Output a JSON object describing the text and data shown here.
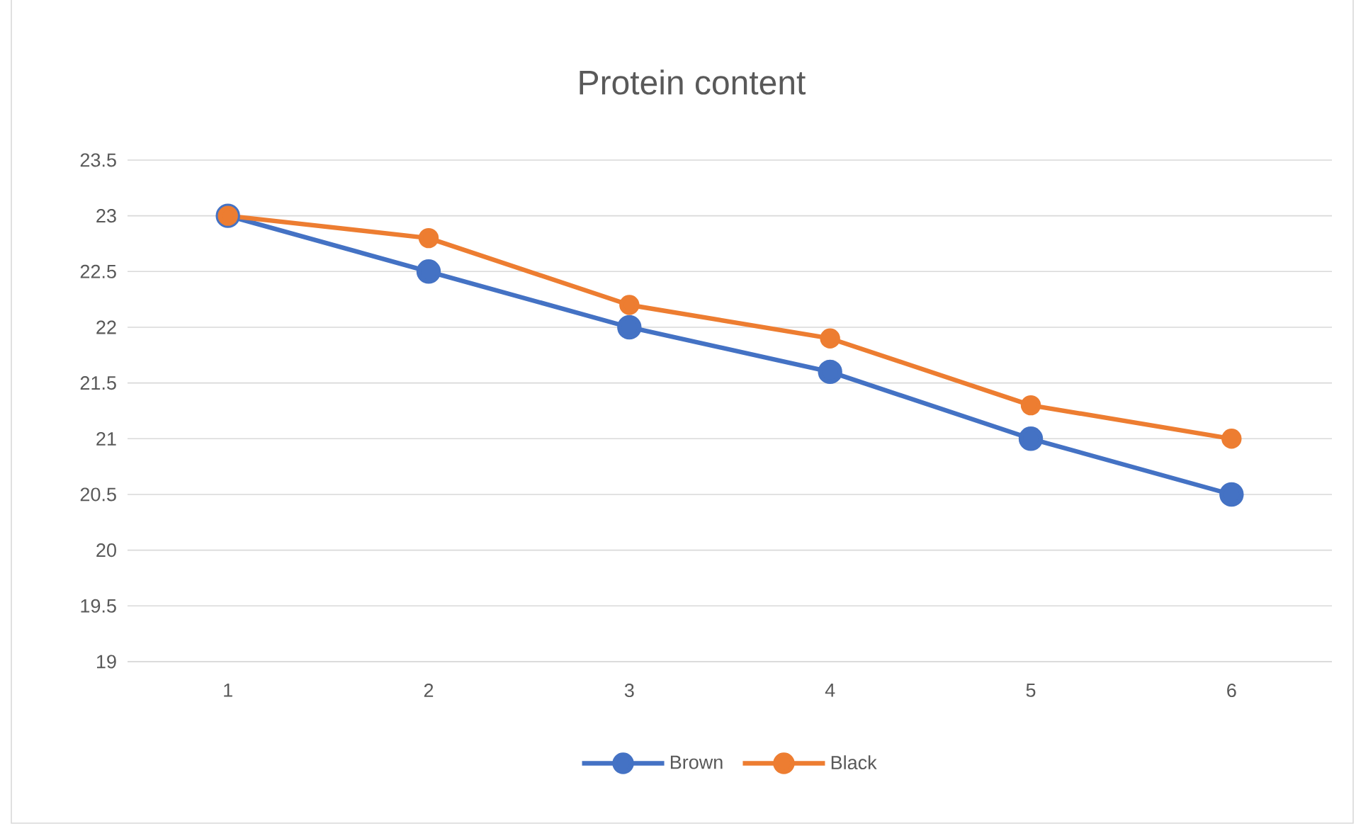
{
  "chart_data": {
    "type": "line",
    "title": "Protein content",
    "categories": [
      "1",
      "2",
      "3",
      "4",
      "5",
      "6"
    ],
    "series": [
      {
        "name": "Brown",
        "color": "#4472c4",
        "values": [
          23,
          22.5,
          22,
          21.6,
          21,
          20.5
        ]
      },
      {
        "name": "Black",
        "color": "#ed7d31",
        "values": [
          23,
          22.8,
          22.2,
          21.9,
          21.3,
          21
        ]
      }
    ],
    "ylim": [
      19,
      23.5
    ],
    "yticks": [
      19,
      19.5,
      20,
      20.5,
      21,
      21.5,
      22,
      22.5,
      23,
      23.5
    ],
    "grid": "y",
    "legend": "bottom",
    "marker": "circle",
    "line_style": "solid"
  }
}
